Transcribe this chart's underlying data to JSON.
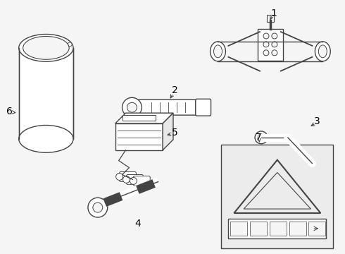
{
  "background_color": "#f5f5f5",
  "line_color": "#444444",
  "label_color": "#000000",
  "figsize": [
    4.9,
    3.6
  ],
  "dpi": 100
}
